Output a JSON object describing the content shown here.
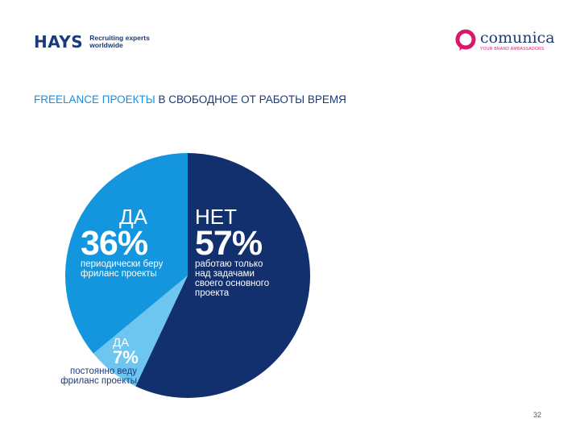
{
  "header": {
    "hays_logo": "HAYS",
    "hays_tagline_line1": "Recruiting experts",
    "hays_tagline_line2": "worldwide",
    "comunica_logo": "comunica",
    "comunica_tagline": "YOUR BRAND AMBASSADORS"
  },
  "title": {
    "accent": "FREELANCE ПРОЕКТЫ",
    "rest": " В СВОБОДНОЕ ОТ РАБОТЫ ВРЕМЯ"
  },
  "chart_data": {
    "type": "pie",
    "title": "FREELANCE ПРОЕКТЫ В СВОБОДНОЕ ОТ РАБОТЫ ВРЕМЯ",
    "slices": [
      {
        "label": "НЕТ",
        "value": 57,
        "value_text": "57%",
        "description_lines": [
          "работаю только",
          "над задачами",
          "своего основного",
          "проекта"
        ],
        "color": "#12306e"
      },
      {
        "label": "ДА",
        "value": 7,
        "value_text": "7%",
        "description_lines": [
          "постоянно веду",
          "фриланс проекты"
        ],
        "color": "#6cc6f0"
      },
      {
        "label": "ДА",
        "value": 36,
        "value_text": "36%",
        "description_lines": [
          "периодически беру",
          "фриланс проекты"
        ],
        "color": "#1396dd"
      }
    ],
    "start_angle_deg": 0,
    "direction": "clockwise",
    "legend": "none"
  },
  "page_number": "32"
}
